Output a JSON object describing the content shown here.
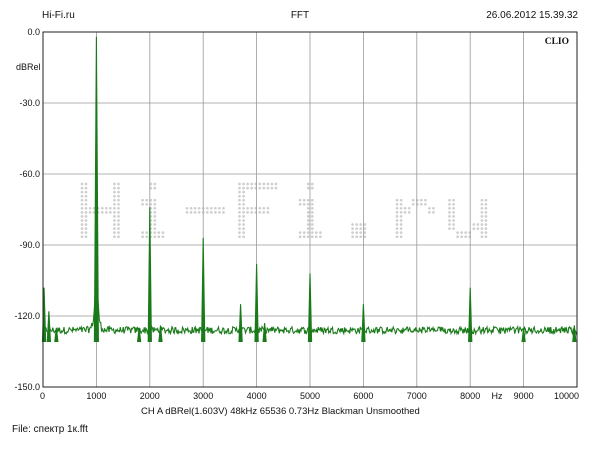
{
  "header": {
    "left": "Hi-Fi.ru",
    "center": "FFT",
    "right": "26.06.2012 15.39.32"
  },
  "brand": "CLIO",
  "watermark": "Hi-Fi.ru",
  "footer": {
    "channel_info": "CH A   dBRel(1.603V)   48kHz   65536   0.73Hz   Blackman   Unsmoothed",
    "file": "File: спектр 1к.fft"
  },
  "colors": {
    "trace": "#1a7a1a",
    "grid": "#9a9a9a",
    "axis": "#222222",
    "watermark": "#cfcfcf"
  },
  "chart_data": {
    "type": "line",
    "title": "FFT",
    "xlabel": "Hz",
    "ylabel": "dBRel",
    "x_range": [
      0,
      10000
    ],
    "y_range": [
      -150,
      0
    ],
    "x_ticks": [
      0,
      1000,
      2000,
      3000,
      4000,
      5000,
      6000,
      7000,
      8000,
      9000,
      10000
    ],
    "y_ticks": [
      "0.0",
      "-30.0",
      "-60.0",
      "-90.0",
      "-120.0",
      "-150.0"
    ],
    "grid": true,
    "noise_floor_db": -131,
    "series": [
      {
        "peaks": [
          {
            "freq": 20,
            "db": -108
          },
          {
            "freq": 110,
            "db": -118
          },
          {
            "freq": 250,
            "db": -125
          },
          {
            "freq": 1000,
            "db": -2
          },
          {
            "freq": 1800,
            "db": -125
          },
          {
            "freq": 2000,
            "db": -74
          },
          {
            "freq": 2200,
            "db": -124
          },
          {
            "freq": 3000,
            "db": -87
          },
          {
            "freq": 3700,
            "db": -115
          },
          {
            "freq": 4000,
            "db": -98
          },
          {
            "freq": 4150,
            "db": -123
          },
          {
            "freq": 5000,
            "db": -102
          },
          {
            "freq": 6000,
            "db": -115
          },
          {
            "freq": 8000,
            "db": -108
          },
          {
            "freq": 9000,
            "db": -125
          },
          {
            "freq": 9950,
            "db": -124
          }
        ]
      }
    ]
  }
}
